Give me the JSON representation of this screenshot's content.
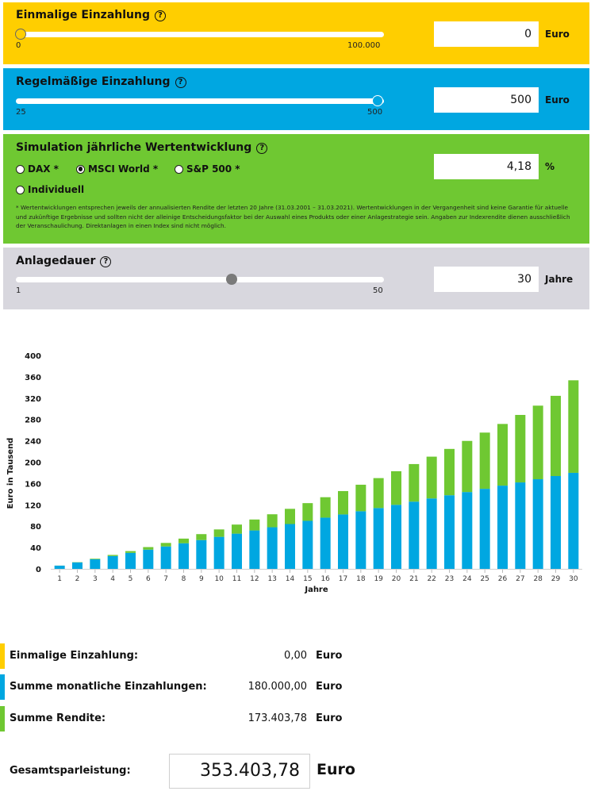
{
  "one_time": {
    "title": "Einmalige Einzahlung",
    "min_label": "0",
    "max_label": "100.000",
    "value": "0",
    "unit": "Euro",
    "slider_fraction": 0.0,
    "help": "?"
  },
  "regular": {
    "title": "Regelmäßige Einzahlung",
    "min_label": "25",
    "max_label": "500",
    "value": "500",
    "unit": "Euro",
    "slider_fraction": 1.0,
    "help": "?"
  },
  "simulation": {
    "title": "Simulation jährliche Wertentwicklung",
    "help": "?",
    "options": [
      {
        "label": "DAX *",
        "selected": false
      },
      {
        "label": "MSCI World *",
        "selected": true
      },
      {
        "label": "S&P 500 *",
        "selected": false
      },
      {
        "label": "Individuell",
        "selected": false
      }
    ],
    "value": "4,18",
    "unit": "%",
    "note": "* Wertentwicklungen entsprechen jeweils der annualisierten Rendite der letzten 20 Jahre (31.03.2001 – 31.03.2021). Wertentwicklungen in der Vergangenheit sind keine Garantie für aktuelle und zukünftige Ergebnisse und sollten nicht der alleinige Entscheidungsfaktor bei der Auswahl eines Produkts oder einer Anlagestrategie sein. Angaben zur Indexrendite dienen ausschließlich der Veranschaulichung. Direktanlagen in einen Index sind nicht möglich."
  },
  "duration": {
    "title": "Anlagedauer",
    "min_label": "1",
    "max_label": "50",
    "value": "30",
    "unit": "Jahre",
    "slider_fraction": 0.592,
    "help": "?"
  },
  "colors": {
    "yellow": "#ffce00",
    "blue": "#00a7e1",
    "green": "#6fc832",
    "gray": "#d8d7de",
    "knob_gray": "#7a7a7a"
  },
  "chart_data": {
    "type": "bar",
    "stacked": true,
    "xlabel": "Jahre",
    "ylabel": "Euro in Tausend",
    "ylim": [
      0,
      400
    ],
    "yticks": [
      0,
      40,
      80,
      120,
      160,
      200,
      240,
      280,
      320,
      360,
      400
    ],
    "categories": [
      "1",
      "2",
      "3",
      "4",
      "5",
      "6",
      "7",
      "8",
      "9",
      "10",
      "11",
      "12",
      "13",
      "14",
      "15",
      "16",
      "17",
      "18",
      "19",
      "20",
      "21",
      "22",
      "23",
      "24",
      "25",
      "26",
      "27",
      "28",
      "29",
      "30"
    ],
    "series": [
      {
        "name": "Summe monatliche Einzahlungen",
        "color": "#00a7e1",
        "values": [
          6,
          12,
          18,
          24,
          30,
          36,
          42,
          48,
          54,
          60,
          66,
          72,
          78,
          84,
          90,
          96,
          102,
          108,
          114,
          120,
          126,
          132,
          138,
          144,
          150,
          156,
          162,
          168,
          174,
          180
        ]
      },
      {
        "name": "Summe Rendite",
        "color": "#6fc832",
        "values": [
          0.1,
          0.5,
          1.1,
          2.1,
          3.3,
          4.8,
          6.6,
          8.7,
          11.1,
          13.9,
          17.0,
          20.5,
          24.3,
          28.5,
          33.2,
          38.3,
          43.8,
          49.7,
          56.1,
          63.0,
          70.4,
          78.3,
          86.8,
          95.8,
          105.4,
          115.6,
          126.5,
          137.9,
          150.3,
          173.4
        ]
      }
    ]
  },
  "summary": {
    "rows": [
      {
        "label": "Einmalige Einzahlung:",
        "value": "0,00",
        "unit": "Euro",
        "color": "#ffce00"
      },
      {
        "label": "Summe monatliche Einzahlungen:",
        "value": "180.000,00",
        "unit": "Euro",
        "color": "#00a7e1"
      },
      {
        "label": "Summe Rendite:",
        "value": "173.403,78",
        "unit": "Euro",
        "color": "#6fc832"
      }
    ],
    "total_label": "Gesamtsparleistung:",
    "total_value": "353.403,78",
    "total_unit": "Euro"
  }
}
